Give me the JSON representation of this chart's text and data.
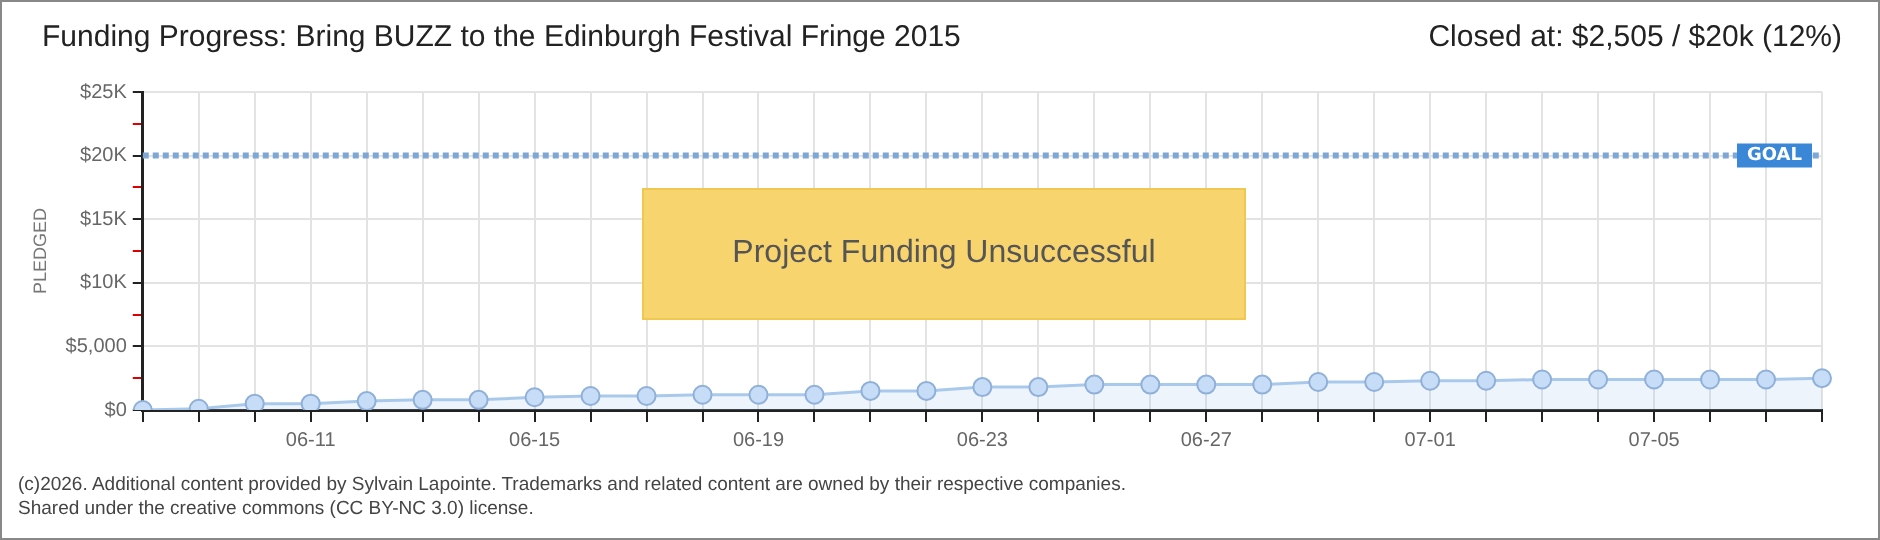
{
  "chart_data": {
    "type": "area",
    "title": "Funding Progress: Bring BUZZ to the Edinburgh Festival Fringe 2015",
    "subtitle": "Closed at: $2,505 / $20k (12%)",
    "ylabel": "PLEDGED",
    "categories": [
      null,
      null,
      null,
      "06-11",
      null,
      null,
      null,
      "06-15",
      null,
      null,
      null,
      "06-19",
      null,
      null,
      null,
      "06-23",
      null,
      null,
      null,
      "06-27",
      null,
      null,
      null,
      "07-01",
      null,
      null,
      null,
      "07-05",
      null,
      null,
      null
    ],
    "series": [
      {
        "color": "#a9c9ec",
        "values": [
          0,
          100,
          500,
          500,
          700,
          800,
          800,
          1000,
          1100,
          1100,
          1200,
          1200,
          1200,
          1500,
          1500,
          1800,
          1800,
          2000,
          2000,
          2000,
          2000,
          2200,
          2200,
          2300,
          2300,
          2400,
          2400,
          2400,
          2400,
          2400,
          2500
        ]
      }
    ],
    "ylim": [
      0,
      25000
    ],
    "yticks": [
      {
        "value": 0,
        "label": "$0"
      },
      {
        "value": 2500,
        "label": null
      },
      {
        "value": 5000,
        "label": "$5,000"
      },
      {
        "value": 7500,
        "label": null
      },
      {
        "value": 10000,
        "label": "$10K"
      },
      {
        "value": 12500,
        "label": null
      },
      {
        "value": 15000,
        "label": "$15K"
      },
      {
        "value": 17500,
        "label": null
      },
      {
        "value": 20000,
        "label": "$20K"
      },
      {
        "value": 22500,
        "label": null
      },
      {
        "value": 25000,
        "label": "$25K"
      }
    ],
    "grid": true,
    "marker": "circle",
    "ref_lines": [
      {
        "axis": "y",
        "value": 20000,
        "label": "GOAL",
        "color": "#7fa7d6",
        "line_style": "dotted"
      }
    ],
    "annotations": [
      "Project Funding Unsuccessful",
      "(c)2026. Additional content provided by Sylvain Lapointe. Trademarks and related content are owned by their respective companies.",
      "Shared under the creative commons (CC BY-NC 3.0) license."
    ]
  }
}
